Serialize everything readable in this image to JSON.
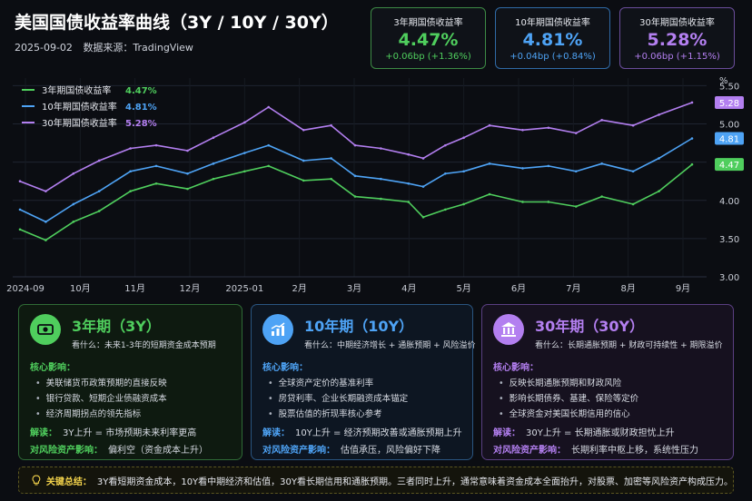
{
  "header": {
    "title": "美国国债收益率曲线（3Y / 10Y / 30Y）",
    "date": "2025-09-02",
    "source": "数据来源：TradingView"
  },
  "kpis": [
    {
      "label": "3年期国债收益率",
      "value": "4.47%",
      "change": "+0.06bp (+1.36%)",
      "color": "#4fce5d",
      "border": "#3d8a45"
    },
    {
      "label": "10年期国债收益率",
      "value": "4.81%",
      "change": "+0.04bp (+0.84%)",
      "color": "#4ea3f5",
      "border": "#2f6aa6"
    },
    {
      "label": "30年期国债收益率",
      "value": "5.28%",
      "change": "+0.06bp (+1.15%)",
      "color": "#b37ff0",
      "border": "#6a4d9a"
    }
  ],
  "chart_data": {
    "type": "line",
    "y_unit": "%",
    "ylim": [
      3.0,
      5.6
    ],
    "y_ticks": [
      "3.00",
      "3.50",
      "4.00",
      "4.50",
      "5.00",
      "5.50"
    ],
    "x_ticks": [
      "2024-09",
      "10月",
      "11月",
      "12月",
      "2025-01",
      "2月",
      "3月",
      "4月",
      "5月",
      "6月",
      "7月",
      "8月",
      "9月"
    ],
    "grid": true,
    "legend_position": "top-left",
    "x": [
      "2024-09-02",
      "2024-09-16",
      "2024-10-01",
      "2024-10-15",
      "2024-11-01",
      "2024-11-15",
      "2024-12-02",
      "2024-12-16",
      "2025-01-02",
      "2025-01-15",
      "2025-02-03",
      "2025-02-18",
      "2025-03-03",
      "2025-03-17",
      "2025-04-01",
      "2025-04-09",
      "2025-04-21",
      "2025-05-01",
      "2025-05-15",
      "2025-06-02",
      "2025-06-16",
      "2025-07-01",
      "2025-07-15",
      "2025-08-01",
      "2025-08-15",
      "2025-09-02"
    ],
    "series": [
      {
        "name": "3年期国债收益率",
        "color": "#4fce5d",
        "end_label": "4.47",
        "values": [
          3.62,
          3.48,
          3.72,
          3.86,
          4.12,
          4.22,
          4.15,
          4.28,
          4.38,
          4.45,
          4.26,
          4.28,
          4.05,
          4.02,
          3.98,
          3.78,
          3.88,
          3.95,
          4.08,
          3.98,
          3.98,
          3.92,
          4.05,
          3.95,
          4.12,
          4.47
        ]
      },
      {
        "name": "10年期国债收益率",
        "color": "#4ea3f5",
        "end_label": "4.81",
        "values": [
          3.88,
          3.72,
          3.95,
          4.12,
          4.38,
          4.45,
          4.35,
          4.48,
          4.62,
          4.72,
          4.52,
          4.55,
          4.32,
          4.28,
          4.22,
          4.18,
          4.35,
          4.38,
          4.48,
          4.42,
          4.45,
          4.38,
          4.48,
          4.38,
          4.55,
          4.81
        ]
      },
      {
        "name": "30年期国债收益率",
        "color": "#b37ff0",
        "end_label": "5.28",
        "values": [
          4.25,
          4.12,
          4.35,
          4.52,
          4.68,
          4.72,
          4.65,
          4.82,
          5.02,
          5.22,
          4.92,
          4.98,
          4.72,
          4.68,
          4.6,
          4.55,
          4.72,
          4.82,
          4.98,
          4.92,
          4.95,
          4.88,
          5.05,
          4.98,
          5.12,
          5.28
        ]
      }
    ]
  },
  "legend": [
    {
      "label": "3年期国债收益率",
      "value": "4.47%",
      "color": "#4fce5d"
    },
    {
      "label": "10年期国债收益率",
      "value": "4.81%",
      "color": "#4ea3f5"
    },
    {
      "label": "30年期国债收益率",
      "value": "5.28%",
      "color": "#b37ff0"
    }
  ],
  "cards": [
    {
      "title": "3年期（3Y）",
      "color": "#4fce5d",
      "bg": "#0e1a10",
      "border": "#2f6b36",
      "icon": "money-icon",
      "watch": "看什么：未来1-3年的短期资金成本预期",
      "core_label": "核心影响：",
      "items": [
        "美联储货币政策预期的直接反映",
        "银行贷款、短期企业债融资成本",
        "经济周期拐点的领先指标"
      ],
      "interp_label": "解读：",
      "interp": "3Y上升 = 市场预期未来利率更高",
      "risk_label": "对风险资产影响：",
      "risk": "偏利空（资金成本上升）"
    },
    {
      "title": "10年期（10Y）",
      "color": "#4ea3f5",
      "bg": "#0d1622",
      "border": "#2a5580",
      "icon": "chart-icon",
      "watch": "看什么：中期经济增长 + 通胀预期 + 风险溢价",
      "core_label": "核心影响：",
      "items": [
        "全球资产定价的基准利率",
        "房贷利率、企业长期融资成本锚定",
        "股票估值的折现率核心参考"
      ],
      "interp_label": "解读：",
      "interp": "10Y上升 = 经济预期改善或通胀预期上升",
      "risk_label": "对风险资产影响：",
      "risk": "估值承压，风险偏好下降"
    },
    {
      "title": "30年期（30Y）",
      "color": "#b37ff0",
      "bg": "#16111f",
      "border": "#5a3f82",
      "icon": "bank-icon",
      "watch": "看什么：长期通胀预期 + 财政可持续性 + 期限溢价",
      "core_label": "核心影响：",
      "items": [
        "反映长期通胀预期和财政风险",
        "影响长期债券、基建、保险等定价",
        "全球资金对美国长期信用的信心"
      ],
      "interp_label": "解读：",
      "interp": "30Y上升 = 长期通胀或财政担忧上升",
      "risk_label": "对风险资产影响：",
      "risk": "长期利率中枢上移，系统性压力"
    }
  ],
  "summary": {
    "label": "关键总结：",
    "text": "3Y看短期资金成本，10Y看中期经济和估值，30Y看长期信用和通胀预期。三者同时上升，通常意味着资金成本全面抬升，对股票、加密等风险资产构成压力。"
  }
}
